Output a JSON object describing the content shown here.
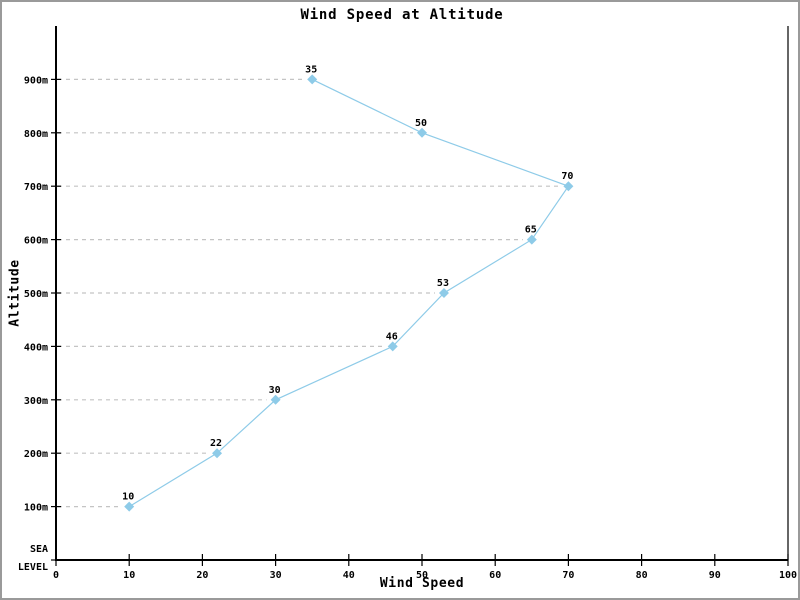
{
  "chart_data": {
    "type": "line",
    "title": "Wind Speed at Altitude",
    "xlabel": "Wind Speed",
    "ylabel": "Altitude",
    "legend": "none",
    "grid": "dashed horizontal leader lines from y-axis to each data point",
    "xlim": [
      0,
      100
    ],
    "ylim": [
      0,
      1000
    ],
    "points": [
      {
        "speed": 10,
        "altitude": 100,
        "label": "10"
      },
      {
        "speed": 22,
        "altitude": 200,
        "label": "22"
      },
      {
        "speed": 30,
        "altitude": 300,
        "label": "30"
      },
      {
        "speed": 46,
        "altitude": 400,
        "label": "46"
      },
      {
        "speed": 53,
        "altitude": 500,
        "label": "53"
      },
      {
        "speed": 65,
        "altitude": 600,
        "label": "65"
      },
      {
        "speed": 70,
        "altitude": 700,
        "label": "70"
      },
      {
        "speed": 50,
        "altitude": 800,
        "label": "50"
      },
      {
        "speed": 35,
        "altitude": 900,
        "label": "35"
      }
    ],
    "x_axis": {
      "ticks": [
        {
          "value": 0,
          "label": "0"
        },
        {
          "value": 10,
          "label": "10"
        },
        {
          "value": 20,
          "label": "20"
        },
        {
          "value": 30,
          "label": "30"
        },
        {
          "value": 40,
          "label": "40"
        },
        {
          "value": 50,
          "label": "50"
        },
        {
          "value": 60,
          "label": "60"
        },
        {
          "value": 70,
          "label": "70"
        },
        {
          "value": 80,
          "label": "80"
        },
        {
          "value": 90,
          "label": "90"
        },
        {
          "value": 100,
          "label": "100"
        }
      ]
    },
    "y_axis": {
      "ticks": [
        {
          "value": 0,
          "lines": [
            "SEA",
            "LEVEL"
          ]
        },
        {
          "value": 100,
          "lines": [
            "100m"
          ]
        },
        {
          "value": 200,
          "lines": [
            "200m"
          ]
        },
        {
          "value": 300,
          "lines": [
            "300m"
          ]
        },
        {
          "value": 400,
          "lines": [
            "400m"
          ]
        },
        {
          "value": 500,
          "lines": [
            "500m"
          ]
        },
        {
          "value": 600,
          "lines": [
            "600m"
          ]
        },
        {
          "value": 700,
          "lines": [
            "700m"
          ]
        },
        {
          "value": 800,
          "lines": [
            "800m"
          ]
        },
        {
          "value": 900,
          "lines": [
            "900m"
          ]
        }
      ]
    },
    "colors": {
      "line": "#8ECBE8",
      "marker": "#8ECBE8",
      "grid": "#c4c4c4",
      "axis": "#000000",
      "frame_border": "#9a9a9a",
      "background": "#ffffff"
    }
  }
}
